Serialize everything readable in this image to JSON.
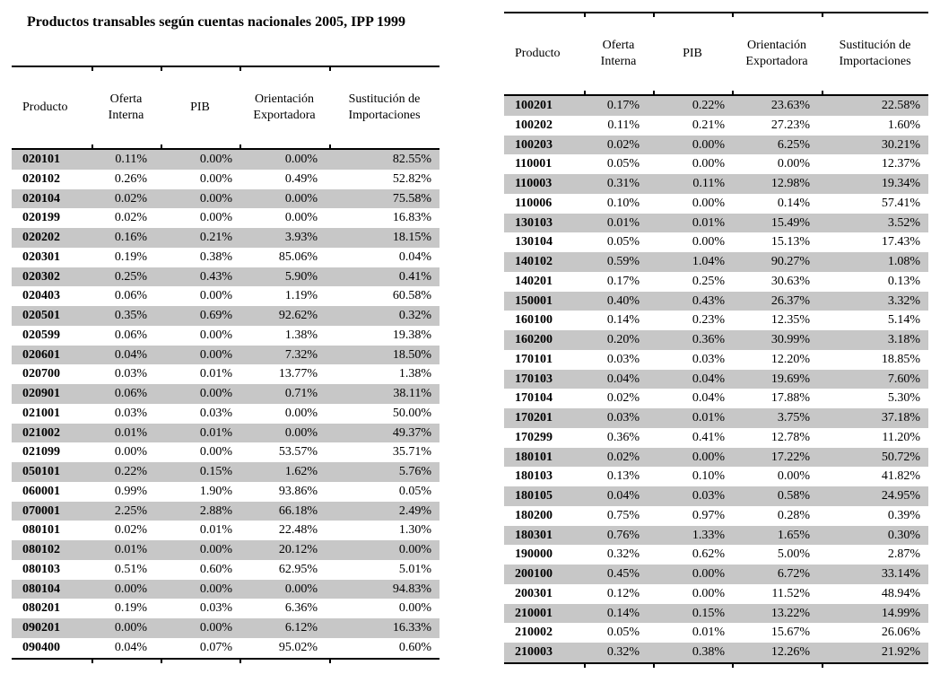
{
  "page_title": "Productos transables según cuentas nacionales 2005, IPP 1999",
  "colors": {
    "row_shading": "#c7c7c7",
    "text": "#000000",
    "rule": "#000000"
  },
  "tables": [
    {
      "id": "left",
      "headers": [
        "Producto",
        "Oferta Interna",
        "PIB",
        "Orientación Exportadora",
        "Sustitución de Importaciones"
      ],
      "rows": [
        [
          "020101",
          "0.11%",
          "0.00%",
          "0.00%",
          "82.55%"
        ],
        [
          "020102",
          "0.26%",
          "0.00%",
          "0.49%",
          "52.82%"
        ],
        [
          "020104",
          "0.02%",
          "0.00%",
          "0.00%",
          "75.58%"
        ],
        [
          "020199",
          "0.02%",
          "0.00%",
          "0.00%",
          "16.83%"
        ],
        [
          "020202",
          "0.16%",
          "0.21%",
          "3.93%",
          "18.15%"
        ],
        [
          "020301",
          "0.19%",
          "0.38%",
          "85.06%",
          "0.04%"
        ],
        [
          "020302",
          "0.25%",
          "0.43%",
          "5.90%",
          "0.41%"
        ],
        [
          "020403",
          "0.06%",
          "0.00%",
          "1.19%",
          "60.58%"
        ],
        [
          "020501",
          "0.35%",
          "0.69%",
          "92.62%",
          "0.32%"
        ],
        [
          "020599",
          "0.06%",
          "0.00%",
          "1.38%",
          "19.38%"
        ],
        [
          "020601",
          "0.04%",
          "0.00%",
          "7.32%",
          "18.50%"
        ],
        [
          "020700",
          "0.03%",
          "0.01%",
          "13.77%",
          "1.38%"
        ],
        [
          "020901",
          "0.06%",
          "0.00%",
          "0.71%",
          "38.11%"
        ],
        [
          "021001",
          "0.03%",
          "0.03%",
          "0.00%",
          "50.00%"
        ],
        [
          "021002",
          "0.01%",
          "0.01%",
          "0.00%",
          "49.37%"
        ],
        [
          "021099",
          "0.00%",
          "0.00%",
          "53.57%",
          "35.71%"
        ],
        [
          "050101",
          "0.22%",
          "0.15%",
          "1.62%",
          "5.76%"
        ],
        [
          "060001",
          "0.99%",
          "1.90%",
          "93.86%",
          "0.05%"
        ],
        [
          "070001",
          "2.25%",
          "2.88%",
          "66.18%",
          "2.49%"
        ],
        [
          "080101",
          "0.02%",
          "0.01%",
          "22.48%",
          "1.30%"
        ],
        [
          "080102",
          "0.01%",
          "0.00%",
          "20.12%",
          "0.00%"
        ],
        [
          "080103",
          "0.51%",
          "0.60%",
          "62.95%",
          "5.01%"
        ],
        [
          "080104",
          "0.00%",
          "0.00%",
          "0.00%",
          "94.83%"
        ],
        [
          "080201",
          "0.19%",
          "0.03%",
          "6.36%",
          "0.00%"
        ],
        [
          "090201",
          "0.00%",
          "0.00%",
          "6.12%",
          "16.33%"
        ],
        [
          "090400",
          "0.04%",
          "0.07%",
          "95.02%",
          "0.60%"
        ]
      ]
    },
    {
      "id": "right",
      "headers": [
        "Producto",
        "Oferta Interna",
        "PIB",
        "Orientación Exportadora",
        "Sustitución de Importaciones"
      ],
      "rows": [
        [
          "100201",
          "0.17%",
          "0.22%",
          "23.63%",
          "22.58%"
        ],
        [
          "100202",
          "0.11%",
          "0.21%",
          "27.23%",
          "1.60%"
        ],
        [
          "100203",
          "0.02%",
          "0.00%",
          "6.25%",
          "30.21%"
        ],
        [
          "110001",
          "0.05%",
          "0.00%",
          "0.00%",
          "12.37%"
        ],
        [
          "110003",
          "0.31%",
          "0.11%",
          "12.98%",
          "19.34%"
        ],
        [
          "110006",
          "0.10%",
          "0.00%",
          "0.14%",
          "57.41%"
        ],
        [
          "130103",
          "0.01%",
          "0.01%",
          "15.49%",
          "3.52%"
        ],
        [
          "130104",
          "0.05%",
          "0.00%",
          "15.13%",
          "17.43%"
        ],
        [
          "140102",
          "0.59%",
          "1.04%",
          "90.27%",
          "1.08%"
        ],
        [
          "140201",
          "0.17%",
          "0.25%",
          "30.63%",
          "0.13%"
        ],
        [
          "150001",
          "0.40%",
          "0.43%",
          "26.37%",
          "3.32%"
        ],
        [
          "160100",
          "0.14%",
          "0.23%",
          "12.35%",
          "5.14%"
        ],
        [
          "160200",
          "0.20%",
          "0.36%",
          "30.99%",
          "3.18%"
        ],
        [
          "170101",
          "0.03%",
          "0.03%",
          "12.20%",
          "18.85%"
        ],
        [
          "170103",
          "0.04%",
          "0.04%",
          "19.69%",
          "7.60%"
        ],
        [
          "170104",
          "0.02%",
          "0.04%",
          "17.88%",
          "5.30%"
        ],
        [
          "170201",
          "0.03%",
          "0.01%",
          "3.75%",
          "37.18%"
        ],
        [
          "170299",
          "0.36%",
          "0.41%",
          "12.78%",
          "11.20%"
        ],
        [
          "180101",
          "0.02%",
          "0.00%",
          "17.22%",
          "50.72%"
        ],
        [
          "180103",
          "0.13%",
          "0.10%",
          "0.00%",
          "41.82%"
        ],
        [
          "180105",
          "0.04%",
          "0.03%",
          "0.58%",
          "24.95%"
        ],
        [
          "180200",
          "0.75%",
          "0.97%",
          "0.28%",
          "0.39%"
        ],
        [
          "180301",
          "0.76%",
          "1.33%",
          "1.65%",
          "0.30%"
        ],
        [
          "190000",
          "0.32%",
          "0.62%",
          "5.00%",
          "2.87%"
        ],
        [
          "200100",
          "0.45%",
          "0.00%",
          "6.72%",
          "33.14%"
        ],
        [
          "200301",
          "0.12%",
          "0.00%",
          "11.52%",
          "48.94%"
        ],
        [
          "210001",
          "0.14%",
          "0.15%",
          "13.22%",
          "14.99%"
        ],
        [
          "210002",
          "0.05%",
          "0.01%",
          "15.67%",
          "26.06%"
        ],
        [
          "210003",
          "0.32%",
          "0.38%",
          "12.26%",
          "21.92%"
        ]
      ]
    }
  ]
}
